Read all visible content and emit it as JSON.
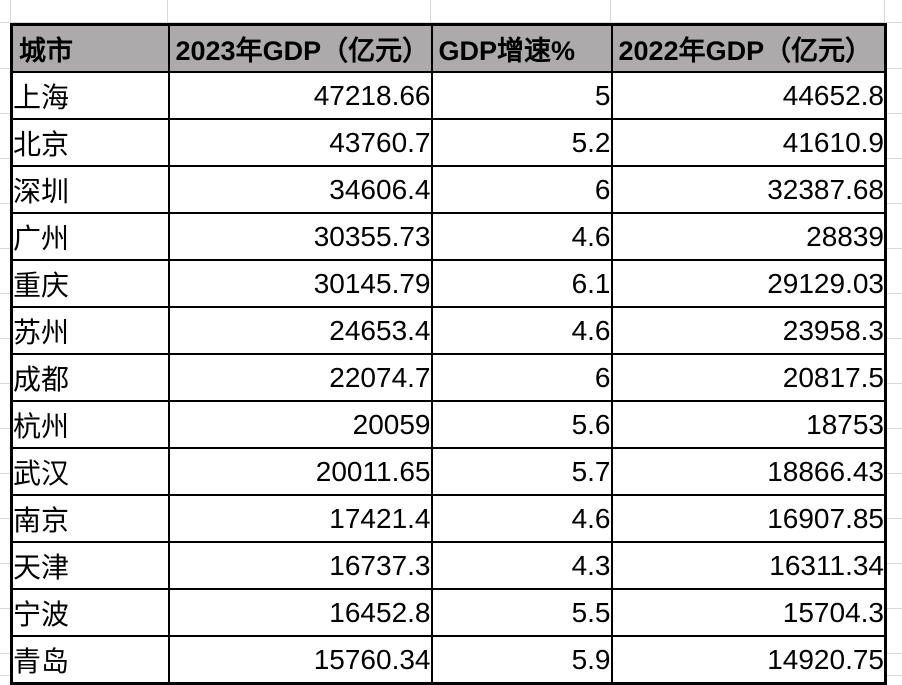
{
  "table": {
    "columns": [
      {
        "key": "city",
        "label": "城市",
        "align": "left"
      },
      {
        "key": "gdp2023",
        "label": "2023年GDP（亿元）",
        "align": "right"
      },
      {
        "key": "growth",
        "label": "GDP增速%",
        "align": "right"
      },
      {
        "key": "gdp2022",
        "label": "2022年GDP（亿元）",
        "align": "right"
      }
    ],
    "rows": [
      [
        "上海",
        "47218.66",
        "5",
        "44652.8"
      ],
      [
        "北京",
        "43760.7",
        "5.2",
        "41610.9"
      ],
      [
        "深圳",
        "34606.4",
        "6",
        "32387.68"
      ],
      [
        "广州",
        "30355.73",
        "4.6",
        "28839"
      ],
      [
        "重庆",
        "30145.79",
        "6.1",
        "29129.03"
      ],
      [
        "苏州",
        "24653.4",
        "4.6",
        "23958.3"
      ],
      [
        "成都",
        "22074.7",
        "6",
        "20817.5"
      ],
      [
        "杭州",
        "20059",
        "5.6",
        "18753"
      ],
      [
        "武汉",
        "20011.65",
        "5.7",
        "18866.43"
      ],
      [
        "南京",
        "17421.4",
        "4.6",
        "16907.85"
      ],
      [
        "天津",
        "16737.3",
        "4.3",
        "16311.34"
      ],
      [
        "宁波",
        "16452.8",
        "5.5",
        "15704.3"
      ],
      [
        "青岛",
        "15760.34",
        "5.9",
        "14920.75"
      ]
    ]
  },
  "colors": {
    "header_bg": "#acaaaa",
    "table_border": "#000000",
    "sheet_gridline": "#d9d9d9",
    "text": "#000000",
    "background": "#ffffff"
  }
}
